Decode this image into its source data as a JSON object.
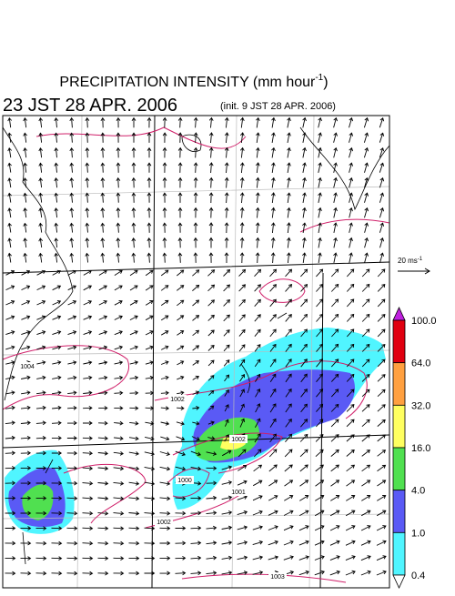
{
  "header": {
    "title": "PRECIPITATION INTENSITY (mm hour",
    "title_sup": "-1",
    "title_close": ")",
    "valid_time": "23 JST 28 APR. 2006",
    "init_time": "(init. 9 JST 28 APR. 2006)"
  },
  "wind_scale": {
    "label": "20 ms",
    "label_sup": "-1"
  },
  "colorbar": {
    "levels": [
      {
        "label": "100.0",
        "color": "#e00010"
      },
      {
        "label": "64.0",
        "color": "#ffa040"
      },
      {
        "label": "32.0",
        "color": "#ffff60"
      },
      {
        "label": "16.0",
        "color": "#50e050"
      },
      {
        "label": "4.0",
        "color": "#5a5af5"
      },
      {
        "label": "1.0",
        "color": "#50f5ff"
      },
      {
        "label": "0.4",
        "color": "#ffffff"
      }
    ],
    "top_color": "#c020e0"
  },
  "isobar_labels": [
    "1004",
    "1002",
    "1002",
    "1000",
    "1001",
    "1002",
    "1003"
  ]
}
